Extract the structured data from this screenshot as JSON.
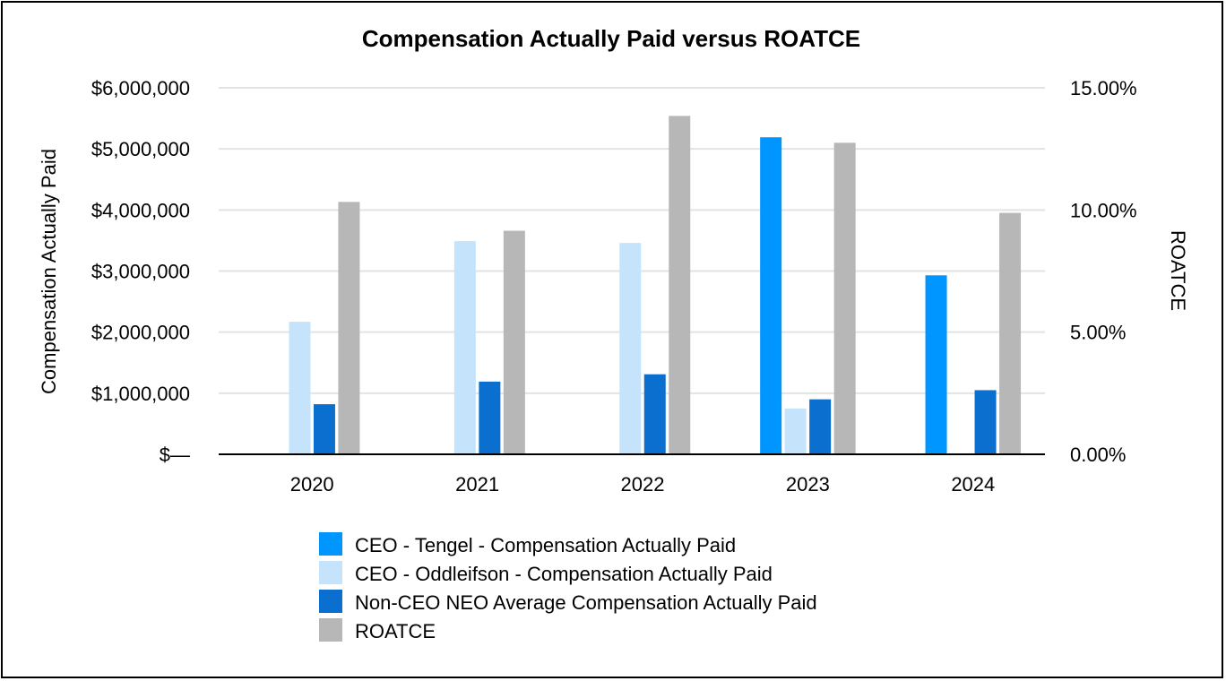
{
  "chart_data": {
    "type": "bar",
    "title": "Compensation Actually Paid versus ROATCE",
    "categories": [
      "2020",
      "2021",
      "2022",
      "2023",
      "2024"
    ],
    "ylabel": "Compensation Actually Paid",
    "y2label": "ROATCE",
    "ylim": [
      0,
      6000000
    ],
    "y2lim": [
      0,
      15
    ],
    "yticks": [
      "$—",
      "$1,000,000",
      "$2,000,000",
      "$3,000,000",
      "$4,000,000",
      "$5,000,000",
      "$6,000,000"
    ],
    "y2ticks": [
      "0.00%",
      "5.00%",
      "10.00%",
      "15.00%"
    ],
    "grid": true,
    "legend_position": "bottom",
    "series": [
      {
        "name": "CEO - Tengel - Compensation Actually Paid",
        "axis": "left",
        "color": "#0096ff",
        "values": [
          null,
          null,
          null,
          5190000,
          2930000
        ]
      },
      {
        "name": "CEO - Oddleifson - Compensation Actually Paid",
        "axis": "left",
        "color": "#c5e4fb",
        "values": [
          2170000,
          3490000,
          3460000,
          750000,
          null
        ]
      },
      {
        "name": "Non-CEO NEO Average Compensation Actually Paid",
        "axis": "left",
        "color": "#0b6fd0",
        "values": [
          820000,
          1190000,
          1310000,
          900000,
          1050000
        ]
      },
      {
        "name": "ROATCE",
        "axis": "right",
        "color": "#b7b7b7",
        "values": [
          10.33,
          9.15,
          13.85,
          12.75,
          9.88
        ]
      }
    ]
  }
}
